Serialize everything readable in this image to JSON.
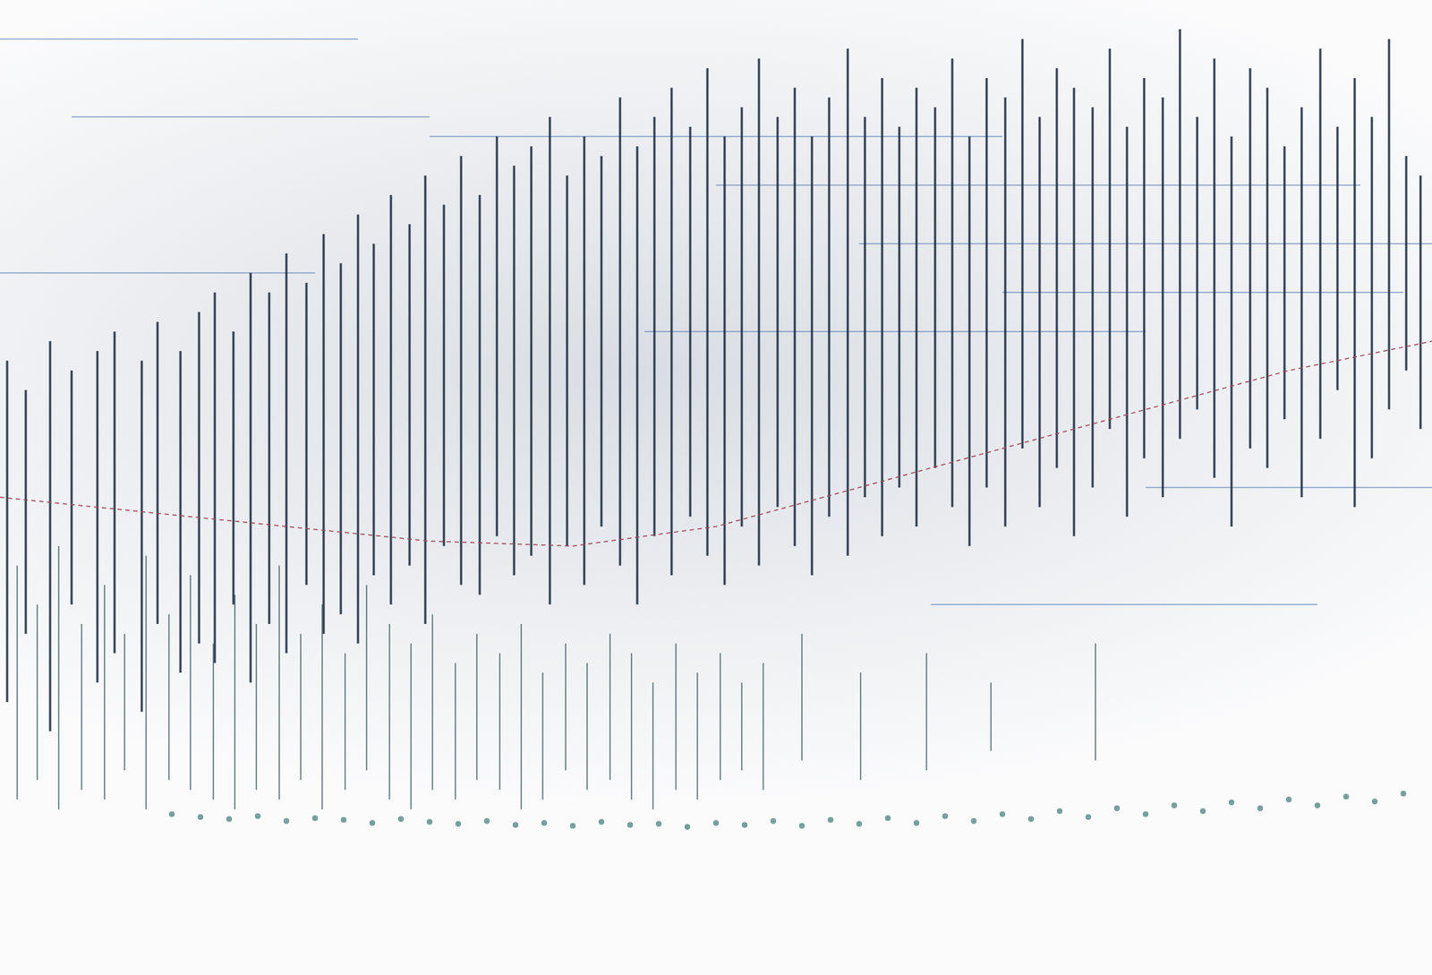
{
  "chart_data": {
    "type": "range",
    "tick_labels": false,
    "grid": false,
    "xlim": [
      0,
      100
    ],
    "ylim": [
      0,
      100
    ],
    "series": [
      {
        "type": "range",
        "color": "#1c2b40",
        "x": [
          0.5,
          1.8,
          3.5,
          5.0,
          6.8,
          8.0,
          9.9,
          11.0,
          12.6,
          13.9,
          15.0,
          16.3,
          17.5,
          18.8,
          20.0,
          21.4,
          22.6,
          23.8,
          25.0,
          26.1,
          27.3,
          28.6,
          29.7,
          31.0,
          32.2,
          33.5,
          34.7,
          35.9,
          37.1,
          38.4,
          39.6,
          40.8,
          42.0,
          43.3,
          44.5,
          45.7,
          46.9,
          48.2,
          49.4,
          50.6,
          51.8,
          53.0,
          54.3,
          55.5,
          56.7,
          57.9,
          59.2,
          60.4,
          61.6,
          62.8,
          64.0,
          65.3,
          66.5,
          67.7,
          68.9,
          70.2,
          71.4,
          72.6,
          73.8,
          75.0,
          76.3,
          77.5,
          78.7,
          79.9,
          81.2,
          82.4,
          83.6,
          84.8,
          86.0,
          87.3,
          88.5,
          89.7,
          90.9,
          92.2,
          93.4,
          94.6,
          95.8,
          97.0,
          98.2,
          99.2
        ],
        "low": [
          28,
          35,
          25,
          38,
          30,
          33,
          27,
          36,
          31,
          34,
          32,
          38,
          30,
          36,
          33,
          40,
          35,
          37,
          34,
          41,
          38,
          42,
          36,
          44,
          40,
          39,
          45,
          41,
          43,
          38,
          44,
          40,
          46,
          42,
          38,
          45,
          41,
          47,
          43,
          40,
          46,
          42,
          48,
          44,
          41,
          47,
          43,
          49,
          45,
          50,
          46,
          52,
          48,
          44,
          50,
          46,
          54,
          48,
          52,
          45,
          50,
          56,
          47,
          53,
          49,
          55,
          58,
          51,
          46,
          54,
          52,
          57,
          49,
          55,
          60,
          48,
          53,
          58,
          62,
          56
        ],
        "high": [
          63,
          60,
          65,
          62,
          64,
          66,
          63,
          67,
          64,
          68,
          70,
          66,
          72,
          70,
          74,
          71,
          76,
          73,
          78,
          75,
          80,
          77,
          82,
          79,
          84,
          80,
          86,
          83,
          85,
          88,
          82,
          86,
          84,
          90,
          85,
          88,
          91,
          87,
          93,
          86,
          89,
          94,
          88,
          91,
          86,
          90,
          95,
          88,
          92,
          87,
          91,
          89,
          94,
          86,
          92,
          90,
          96,
          88,
          93,
          91,
          89,
          95,
          87,
          92,
          90,
          97,
          88,
          94,
          86,
          93,
          91,
          85,
          89,
          95,
          87,
          92,
          88,
          96,
          84,
          82
        ]
      },
      {
        "type": "range",
        "color": "#4d6b70",
        "x": [
          1.2,
          2.6,
          4.1,
          5.7,
          7.3,
          8.7,
          10.2,
          11.8,
          13.3,
          14.9,
          16.4,
          17.9,
          19.5,
          21.0,
          22.5,
          24.1,
          25.6,
          27.2,
          28.7,
          30.2,
          31.8,
          33.3,
          34.9,
          36.4,
          37.9,
          39.5,
          41.0,
          42.6,
          44.1,
          45.6,
          47.2,
          48.7,
          50.3,
          51.8,
          53.3,
          56.0,
          60.1,
          64.7,
          69.2,
          76.5
        ],
        "low": [
          18,
          20,
          17,
          19,
          18,
          21,
          17,
          20,
          19,
          18,
          17,
          19,
          18,
          20,
          17,
          19,
          21,
          18,
          17,
          19,
          18,
          20,
          19,
          17,
          18,
          21,
          19,
          20,
          18,
          17,
          19,
          18,
          20,
          21,
          19,
          22,
          20,
          21,
          23,
          22
        ],
        "high": [
          42,
          38,
          44,
          36,
          40,
          35,
          43,
          37,
          41,
          34,
          39,
          36,
          42,
          35,
          38,
          33,
          40,
          36,
          34,
          37,
          32,
          35,
          33,
          36,
          31,
          34,
          32,
          35,
          33,
          30,
          34,
          31,
          33,
          30,
          32,
          35,
          31,
          33,
          30,
          34
        ]
      },
      {
        "type": "scatter",
        "color": "#5f8f8a",
        "marker": "circle",
        "x": [
          12,
          14,
          16,
          18,
          20,
          22,
          24,
          26,
          28,
          30,
          32,
          34,
          36,
          38,
          40,
          42,
          44,
          46,
          48,
          50,
          52,
          54,
          56,
          58,
          60,
          62,
          64,
          66,
          68,
          70,
          72,
          74,
          76,
          78,
          80,
          82,
          84,
          86,
          88,
          90,
          92,
          94,
          96,
          98
        ],
        "values": [
          16.5,
          16.2,
          16,
          16.3,
          15.8,
          16.1,
          15.9,
          15.6,
          16,
          15.7,
          15.5,
          15.8,
          15.4,
          15.6,
          15.3,
          15.7,
          15.4,
          15.5,
          15.2,
          15.6,
          15.4,
          15.8,
          15.3,
          15.9,
          15.5,
          16.1,
          15.6,
          16.3,
          15.8,
          16.5,
          16,
          16.8,
          16.2,
          17.1,
          16.5,
          17.4,
          16.8,
          17.7,
          17.1,
          18,
          17.4,
          18.3,
          17.8,
          18.6
        ]
      },
      {
        "type": "line",
        "color": "#a0485a",
        "line_style": "dashed",
        "x": [
          0,
          10,
          20,
          30,
          40,
          50,
          60,
          70,
          80,
          90,
          100
        ],
        "values": [
          49,
          47.5,
          46,
          44.5,
          44,
          46,
          50,
          54,
          58,
          62,
          65
        ]
      },
      {
        "type": "segment",
        "color": "#5a7fb5",
        "x_start": [
          0,
          5,
          0,
          30,
          50,
          60,
          70,
          45,
          80,
          65
        ],
        "x_end": [
          25,
          30,
          22,
          70,
          95,
          100,
          98,
          80,
          100,
          92
        ],
        "values": [
          96,
          88,
          72,
          86,
          81,
          75,
          70,
          66,
          50,
          38
        ]
      }
    ]
  }
}
